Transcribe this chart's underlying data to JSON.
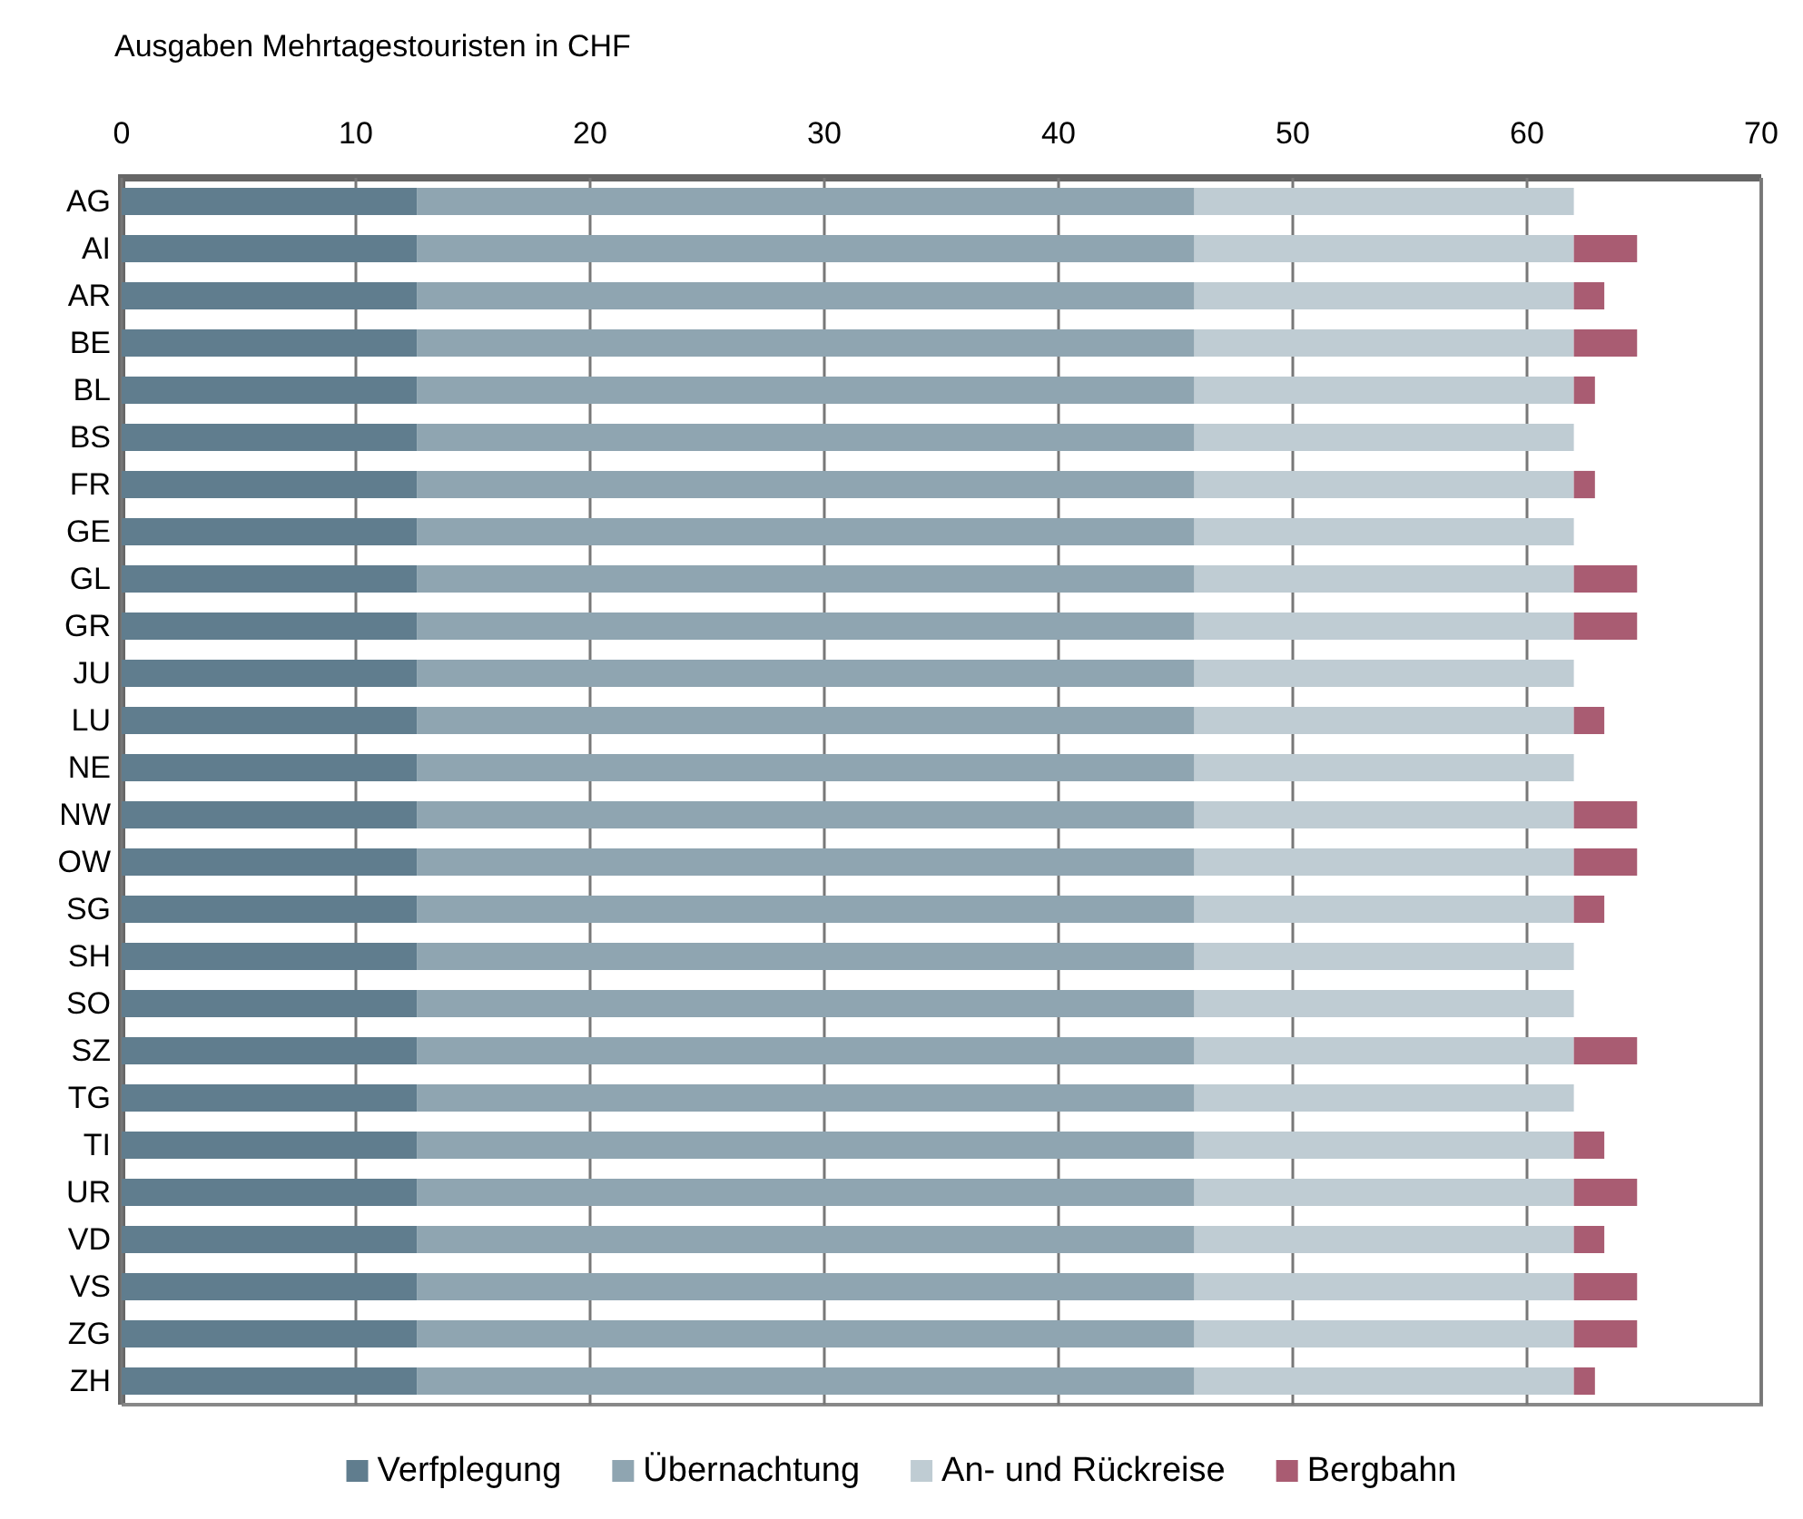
{
  "chart_data": {
    "type": "bar",
    "orientation": "horizontal",
    "stacked": true,
    "title": "Ausgaben Mehrtagestouristen in CHF",
    "categories": [
      "AG",
      "AI",
      "AR",
      "BE",
      "BL",
      "BS",
      "FR",
      "GE",
      "GL",
      "GR",
      "JU",
      "LU",
      "NE",
      "NW",
      "OW",
      "SG",
      "SH",
      "SO",
      "SZ",
      "TG",
      "TI",
      "UR",
      "VD",
      "VS",
      "ZG",
      "ZH"
    ],
    "series": [
      {
        "name": "Verfplegung",
        "color": "#607d8e",
        "values": [
          12.6,
          12.6,
          12.6,
          12.6,
          12.6,
          12.6,
          12.6,
          12.6,
          12.6,
          12.6,
          12.6,
          12.6,
          12.6,
          12.6,
          12.6,
          12.6,
          12.6,
          12.6,
          12.6,
          12.6,
          12.6,
          12.6,
          12.6,
          12.6,
          12.6,
          12.6
        ]
      },
      {
        "name": "Übernachtung",
        "color": "#8fa5b1",
        "values": [
          33.2,
          33.2,
          33.2,
          33.2,
          33.2,
          33.2,
          33.2,
          33.2,
          33.2,
          33.2,
          33.2,
          33.2,
          33.2,
          33.2,
          33.2,
          33.2,
          33.2,
          33.2,
          33.2,
          33.2,
          33.2,
          33.2,
          33.2,
          33.2,
          33.2,
          33.2
        ]
      },
      {
        "name": "An- und Rückreise",
        "color": "#bfccd3",
        "values": [
          16.2,
          16.2,
          16.2,
          16.2,
          16.2,
          16.2,
          16.2,
          16.2,
          16.2,
          16.2,
          16.2,
          16.2,
          16.2,
          16.2,
          16.2,
          16.2,
          16.2,
          16.2,
          16.2,
          16.2,
          16.2,
          16.2,
          16.2,
          16.2,
          16.2,
          16.2
        ]
      },
      {
        "name": "Bergbahn",
        "color": "#a95c72",
        "values": [
          0,
          2.7,
          1.3,
          2.7,
          0.9,
          0,
          0.9,
          0,
          2.7,
          2.7,
          0,
          1.3,
          0,
          2.7,
          2.7,
          1.3,
          0,
          0,
          2.7,
          0,
          1.3,
          2.7,
          1.3,
          2.7,
          2.7,
          0.9
        ]
      }
    ],
    "xlim": [
      0,
      70
    ],
    "xticks": [
      0,
      10,
      20,
      30,
      40,
      50,
      60,
      70
    ],
    "grid": "x",
    "legend": "bottom"
  }
}
